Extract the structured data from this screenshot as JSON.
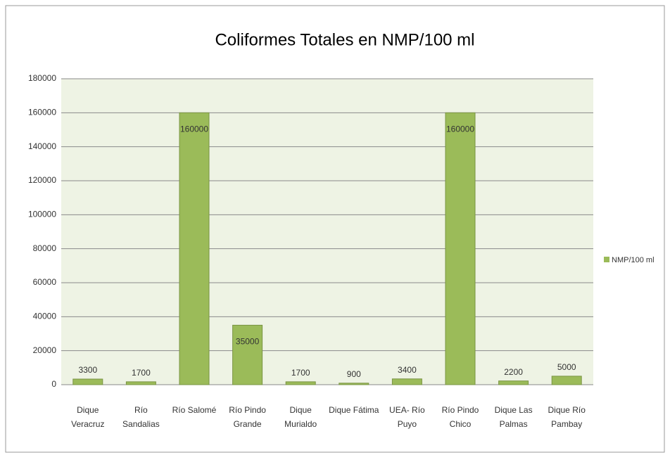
{
  "chart_data": {
    "type": "bar",
    "title": "Coliformes Totales en NMP/100 ml",
    "categories": [
      "Dique Veracruz",
      "Río Sandalias",
      "Río Salomé",
      "Río Pindo Grande",
      "Dique Murialdo",
      "Dique Fátima",
      "UEA- Río Puyo",
      "Río Pindo Chico",
      "Dique Las Palmas",
      "Dique Río Pambay"
    ],
    "series": [
      {
        "name": "NMP/100 ml",
        "color": "#9bbb59",
        "values": [
          3300,
          1700,
          160000,
          35000,
          1700,
          900,
          3400,
          160000,
          2200,
          5000
        ]
      }
    ],
    "ylim": [
      0,
      180000
    ],
    "yticks": [
      0,
      20000,
      40000,
      60000,
      80000,
      100000,
      120000,
      140000,
      160000,
      180000
    ],
    "grid": true,
    "legend": "right"
  }
}
